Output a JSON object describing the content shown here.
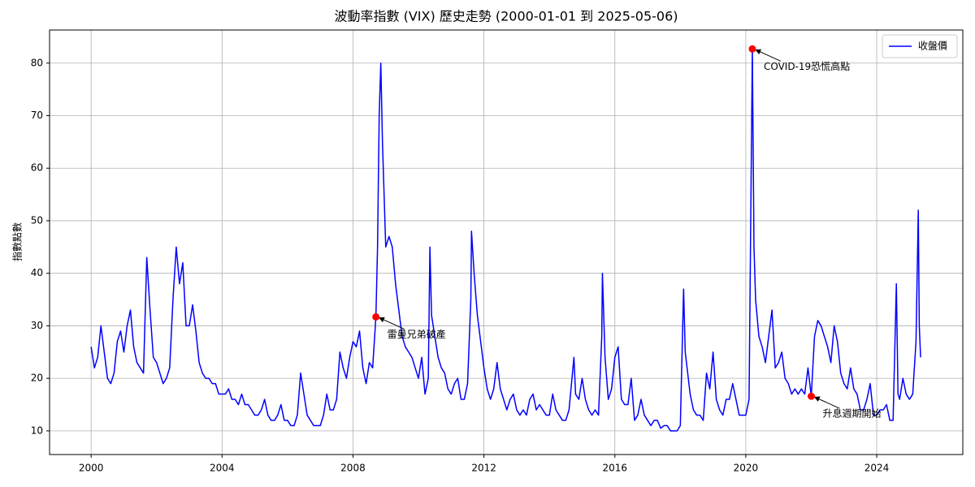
{
  "chart_data": {
    "type": "line",
    "title": "波動率指數 (VIX) 歷史走勢 (2000-01-01 到 2025-05-06)",
    "y_label": "指數點數",
    "x": [
      2000.0,
      2000.1,
      2000.2,
      2000.3,
      2000.4,
      2000.5,
      2000.6,
      2000.7,
      2000.8,
      2000.9,
      2001.0,
      2001.1,
      2001.2,
      2001.3,
      2001.4,
      2001.5,
      2001.6,
      2001.7,
      2001.8,
      2001.9,
      2002.0,
      2002.1,
      2002.2,
      2002.3,
      2002.4,
      2002.5,
      2002.6,
      2002.7,
      2002.8,
      2002.9,
      2003.0,
      2003.1,
      2003.2,
      2003.3,
      2003.4,
      2003.5,
      2003.6,
      2003.7,
      2003.8,
      2003.9,
      2004.0,
      2004.1,
      2004.2,
      2004.3,
      2004.4,
      2004.5,
      2004.6,
      2004.7,
      2004.8,
      2004.9,
      2005.0,
      2005.1,
      2005.2,
      2005.3,
      2005.4,
      2005.5,
      2005.6,
      2005.7,
      2005.8,
      2005.9,
      2006.0,
      2006.1,
      2006.2,
      2006.3,
      2006.4,
      2006.5,
      2006.6,
      2006.7,
      2006.8,
      2006.9,
      2007.0,
      2007.1,
      2007.2,
      2007.3,
      2007.4,
      2007.5,
      2007.6,
      2007.7,
      2007.8,
      2007.9,
      2008.0,
      2008.1,
      2008.2,
      2008.3,
      2008.4,
      2008.5,
      2008.6,
      2008.7,
      2008.75,
      2008.8,
      2008.85,
      2008.9,
      2008.95,
      2009.0,
      2009.1,
      2009.2,
      2009.3,
      2009.4,
      2009.5,
      2009.6,
      2009.7,
      2009.8,
      2009.9,
      2010.0,
      2010.1,
      2010.2,
      2010.3,
      2010.35,
      2010.4,
      2010.5,
      2010.6,
      2010.7,
      2010.8,
      2010.9,
      2011.0,
      2011.1,
      2011.2,
      2011.3,
      2011.4,
      2011.5,
      2011.6,
      2011.62,
      2011.7,
      2011.8,
      2011.9,
      2012.0,
      2012.1,
      2012.2,
      2012.3,
      2012.4,
      2012.5,
      2012.6,
      2012.7,
      2012.8,
      2012.9,
      2013.0,
      2013.1,
      2013.2,
      2013.3,
      2013.4,
      2013.5,
      2013.6,
      2013.7,
      2013.8,
      2013.9,
      2014.0,
      2014.1,
      2014.2,
      2014.3,
      2014.4,
      2014.5,
      2014.6,
      2014.75,
      2014.8,
      2014.9,
      2015.0,
      2015.1,
      2015.2,
      2015.3,
      2015.4,
      2015.5,
      2015.6,
      2015.62,
      2015.7,
      2015.8,
      2015.9,
      2016.0,
      2016.1,
      2016.2,
      2016.3,
      2016.4,
      2016.5,
      2016.6,
      2016.7,
      2016.8,
      2016.9,
      2017.0,
      2017.1,
      2017.2,
      2017.3,
      2017.4,
      2017.5,
      2017.6,
      2017.7,
      2017.8,
      2017.9,
      2018.0,
      2018.1,
      2018.15,
      2018.3,
      2018.4,
      2018.5,
      2018.6,
      2018.7,
      2018.8,
      2018.9,
      2019.0,
      2019.1,
      2019.2,
      2019.3,
      2019.4,
      2019.5,
      2019.6,
      2019.7,
      2019.8,
      2019.9,
      2020.0,
      2020.1,
      2020.2,
      2020.25,
      2020.3,
      2020.4,
      2020.5,
      2020.6,
      2020.7,
      2020.8,
      2020.9,
      2021.0,
      2021.1,
      2021.2,
      2021.3,
      2021.4,
      2021.5,
      2021.6,
      2021.7,
      2021.8,
      2021.9,
      2022.0,
      2022.1,
      2022.2,
      2022.3,
      2022.4,
      2022.5,
      2022.6,
      2022.7,
      2022.8,
      2022.9,
      2023.0,
      2023.1,
      2023.2,
      2023.3,
      2023.4,
      2023.5,
      2023.6,
      2023.7,
      2023.8,
      2023.9,
      2024.0,
      2024.1,
      2024.2,
      2024.3,
      2024.4,
      2024.5,
      2024.6,
      2024.65,
      2024.7,
      2024.8,
      2024.9,
      2025.0,
      2025.1,
      2025.2,
      2025.27,
      2025.3,
      2025.34
    ],
    "series": [
      {
        "name": "收盤價",
        "color": "#0000ff",
        "values": [
          26,
          22,
          24,
          30,
          25,
          20,
          19,
          21,
          27,
          29,
          25,
          30,
          33,
          26,
          23,
          22,
          21,
          43,
          33,
          24,
          23,
          21,
          19,
          20,
          22,
          35,
          45,
          38,
          42,
          30,
          30,
          34,
          29,
          23,
          21,
          20,
          20,
          19,
          19,
          17,
          17,
          17,
          18,
          16,
          16,
          15,
          17,
          15,
          15,
          14,
          13,
          13,
          14,
          16,
          13,
          12,
          12,
          13,
          15,
          12,
          12,
          11,
          11,
          13,
          21,
          17,
          13,
          12,
          11,
          11,
          11,
          13,
          17,
          14,
          14,
          16,
          25,
          22,
          20,
          24,
          27,
          26,
          29,
          22,
          19,
          23,
          22,
          31.7,
          45,
          70,
          80,
          65,
          55,
          45,
          47,
          45,
          38,
          33,
          28,
          26,
          25,
          24,
          22,
          20,
          24,
          17,
          20,
          45,
          32,
          28,
          24,
          22,
          21,
          18,
          17,
          19,
          20,
          16,
          16,
          19,
          35,
          48,
          40,
          32,
          27,
          22,
          18,
          16,
          18,
          23,
          18,
          16,
          14,
          16,
          17,
          14,
          13,
          14,
          13,
          16,
          17,
          14,
          15,
          14,
          13,
          13,
          17,
          14,
          13,
          12,
          12,
          14,
          24,
          17,
          16,
          20,
          16,
          14,
          13,
          14,
          13,
          28,
          40,
          24,
          16,
          18,
          24,
          26,
          16,
          15,
          15,
          20,
          12,
          13,
          16,
          13,
          12,
          11,
          12,
          12,
          10.5,
          11,
          11,
          10,
          10,
          10,
          11,
          37,
          25,
          17,
          14,
          13,
          13,
          12,
          21,
          18,
          25,
          16,
          14,
          13,
          16,
          16,
          19,
          16,
          13,
          13,
          13,
          16,
          82.7,
          45,
          35,
          28,
          26,
          23,
          28,
          33,
          22,
          23,
          25,
          20,
          19,
          17,
          18,
          17,
          18,
          17,
          22,
          16.6,
          28,
          31,
          30,
          28,
          26,
          23,
          30,
          27,
          21,
          19,
          18,
          22,
          18,
          17,
          14,
          14,
          16,
          19,
          13,
          13,
          14,
          14,
          15,
          12,
          12,
          38,
          17,
          16,
          20,
          17,
          16,
          17,
          27,
          52,
          30,
          24
        ]
      }
    ],
    "xlim": [
      1998.73,
      2026.63
    ],
    "xticks": [
      2000,
      2004,
      2008,
      2012,
      2016,
      2020,
      2024
    ],
    "ylim": [
      5.5,
      86.3
    ],
    "yticks": [
      10,
      20,
      30,
      40,
      50,
      60,
      70,
      80
    ],
    "grid": true,
    "legend": "upper right",
    "annotations": [
      {
        "text": "雷曼兄弟破產",
        "x": 2008.7,
        "y": 31.7
      },
      {
        "text": "COVID-19恐慌高點",
        "x": 2020.2,
        "y": 82.7
      },
      {
        "text": "升息週期開始",
        "x": 2022.0,
        "y": 16.6
      }
    ],
    "annotation_color": "#ff0000"
  }
}
